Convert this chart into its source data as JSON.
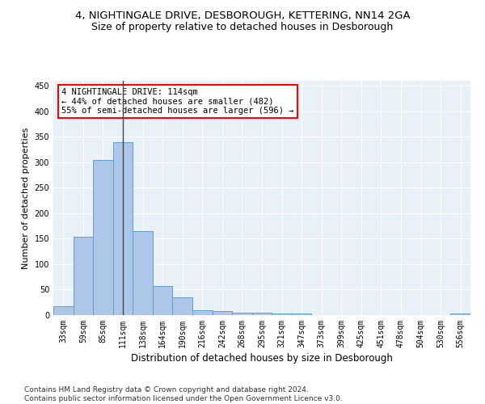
{
  "title": "4, NIGHTINGALE DRIVE, DESBOROUGH, KETTERING, NN14 2GA",
  "subtitle": "Size of property relative to detached houses in Desborough",
  "xlabel": "Distribution of detached houses by size in Desborough",
  "ylabel": "Number of detached properties",
  "bar_color": "#aec6e8",
  "bar_edge_color": "#5a9fd4",
  "background_color": "#e8f0f8",
  "grid_color": "#ffffff",
  "annotation_line1": "4 NIGHTINGALE DRIVE: 114sqm",
  "annotation_line2": "← 44% of detached houses are smaller (482)",
  "annotation_line3": "55% of semi-detached houses are larger (596) →",
  "vline_x": 3.0,
  "vline_color": "#444444",
  "categories": [
    "33sqm",
    "59sqm",
    "85sqm",
    "111sqm",
    "138sqm",
    "164sqm",
    "190sqm",
    "216sqm",
    "242sqm",
    "268sqm",
    "295sqm",
    "321sqm",
    "347sqm",
    "373sqm",
    "399sqm",
    "425sqm",
    "451sqm",
    "478sqm",
    "504sqm",
    "530sqm",
    "556sqm"
  ],
  "values": [
    17,
    154,
    305,
    340,
    165,
    57,
    35,
    10,
    8,
    5,
    4,
    3,
    3,
    0,
    0,
    0,
    0,
    0,
    0,
    0,
    3
  ],
  "ylim": [
    0,
    460
  ],
  "yticks": [
    0,
    50,
    100,
    150,
    200,
    250,
    300,
    350,
    400,
    450
  ],
  "footer": "Contains HM Land Registry data © Crown copyright and database right 2024.\nContains public sector information licensed under the Open Government Licence v3.0.",
  "title_fontsize": 9.5,
  "subtitle_fontsize": 9,
  "xlabel_fontsize": 8.5,
  "ylabel_fontsize": 8,
  "tick_fontsize": 7,
  "footer_fontsize": 6.5,
  "ann_fontsize": 7.5
}
